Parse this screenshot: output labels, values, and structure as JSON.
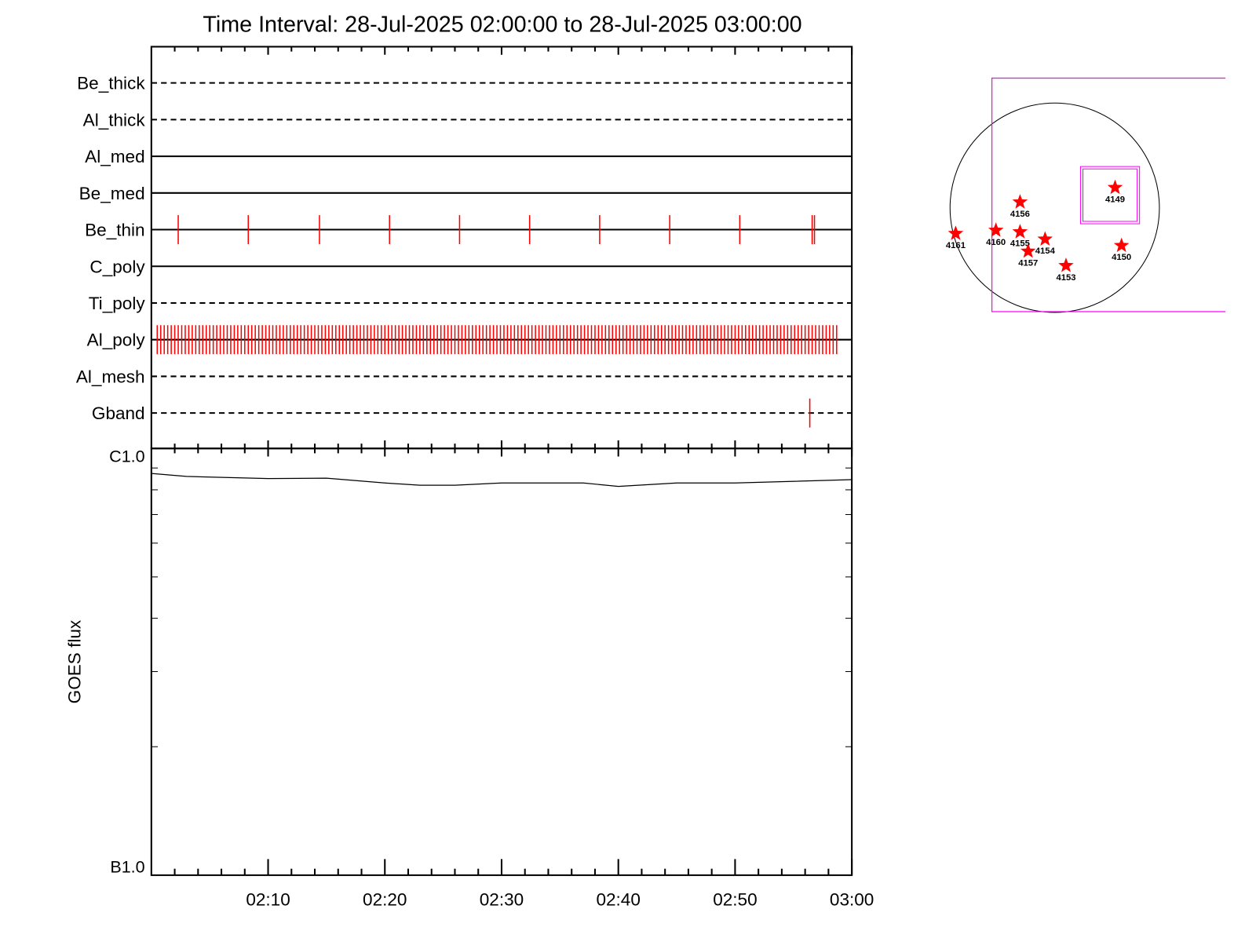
{
  "chart_data": {
    "type": "timeline",
    "title": "Time Interval: 28-Jul-2025 02:00:00 to 28-Jul-2025 03:00:00",
    "xlim": [
      0,
      60
    ],
    "xticks": [
      {
        "value": 10,
        "label": "02:10"
      },
      {
        "value": 20,
        "label": "02:20"
      },
      {
        "value": 30,
        "label": "02:30"
      },
      {
        "value": 40,
        "label": "02:40"
      },
      {
        "value": 50,
        "label": "02:50"
      },
      {
        "value": 60,
        "label": "03:00"
      }
    ],
    "minor_xticks": [
      2,
      4,
      6,
      8,
      12,
      14,
      16,
      18,
      22,
      24,
      26,
      28,
      32,
      34,
      36,
      38,
      42,
      44,
      46,
      48,
      52,
      54,
      56,
      58
    ],
    "event_color": "#ff0000",
    "filters": [
      {
        "name": "Be_thick",
        "style": "dashed",
        "events": []
      },
      {
        "name": "Al_thick",
        "style": "dashed",
        "events": []
      },
      {
        "name": "Al_med",
        "style": "solid",
        "events": []
      },
      {
        "name": "Be_med",
        "style": "solid",
        "events": []
      },
      {
        "name": "Be_thin",
        "style": "solid",
        "events": [
          2.3,
          8.3,
          14.4,
          20.4,
          26.4,
          32.4,
          38.4,
          44.4,
          50.4,
          56.6,
          56.8
        ]
      },
      {
        "name": "C_poly",
        "style": "solid",
        "events": []
      },
      {
        "name": "Ti_poly",
        "style": "dashed",
        "events": []
      },
      {
        "name": "Al_poly",
        "style": "solid",
        "events": [
          0.5,
          0.8,
          1.1,
          1.4,
          1.7,
          2.0,
          2.3,
          2.6,
          2.9,
          3.2,
          3.5,
          3.8,
          4.1,
          4.4,
          4.7,
          5.0,
          5.3,
          5.6,
          5.9,
          6.2,
          6.5,
          6.8,
          7.1,
          7.4,
          7.7,
          8.0,
          8.3,
          8.6,
          8.9,
          9.2,
          9.5,
          9.8,
          10.1,
          10.4,
          10.7,
          11.0,
          11.3,
          11.6,
          11.9,
          12.2,
          12.5,
          12.8,
          13.1,
          13.4,
          13.7,
          14.0,
          14.3,
          14.6,
          14.9,
          15.2,
          15.5,
          15.8,
          16.1,
          16.4,
          16.7,
          17.0,
          17.3,
          17.6,
          17.9,
          18.2,
          18.5,
          18.8,
          19.1,
          19.4,
          19.7,
          20.0,
          20.3,
          20.6,
          20.9,
          21.2,
          21.5,
          21.8,
          22.1,
          22.4,
          22.7,
          23.0,
          23.3,
          23.6,
          23.9,
          24.2,
          24.5,
          24.8,
          25.1,
          25.4,
          25.7,
          26.0,
          26.3,
          26.6,
          26.9,
          27.2,
          27.5,
          27.8,
          28.1,
          28.4,
          28.7,
          29.0,
          29.3,
          29.6,
          29.9,
          30.2,
          30.5,
          30.8,
          31.1,
          31.4,
          31.7,
          32.0,
          32.3,
          32.6,
          32.9,
          33.2,
          33.5,
          33.8,
          34.1,
          34.4,
          34.7,
          35.0,
          35.3,
          35.6,
          35.9,
          36.2,
          36.5,
          36.8,
          37.1,
          37.4,
          37.7,
          38.0,
          38.3,
          38.6,
          38.9,
          39.2,
          39.5,
          39.8,
          40.1,
          40.4,
          40.7,
          41.0,
          41.3,
          41.6,
          41.9,
          42.2,
          42.5,
          42.8,
          43.1,
          43.4,
          43.7,
          44.0,
          44.3,
          44.6,
          44.9,
          45.2,
          45.5,
          45.8,
          46.1,
          46.4,
          46.7,
          47.0,
          47.3,
          47.6,
          47.9,
          48.2,
          48.5,
          48.8,
          49.1,
          49.4,
          49.7,
          50.0,
          50.3,
          50.6,
          50.9,
          51.2,
          51.5,
          51.8,
          52.1,
          52.4,
          52.7,
          53.0,
          53.3,
          53.6,
          53.9,
          54.2,
          54.5,
          54.8,
          55.1,
          55.4,
          55.7,
          56.0,
          56.3,
          56.6,
          56.9,
          57.2,
          57.5,
          57.8,
          58.1,
          58.4,
          58.7
        ]
      },
      {
        "name": "Al_mesh",
        "style": "dashed",
        "events": []
      },
      {
        "name": "Gband",
        "style": "dashed",
        "events": [
          56.4
        ]
      }
    ],
    "goes": {
      "ylabel": "GOES flux",
      "log_scale": true,
      "ylim": [
        1e-07,
        1e-06
      ],
      "yticks": [
        {
          "value": 1e-07,
          "label": "B1.0"
        },
        {
          "value": 1e-06,
          "label": "C1.0"
        }
      ],
      "minor_yticks": [
        2e-07,
        3e-07,
        4e-07,
        5e-07,
        6e-07,
        7e-07,
        8e-07,
        9e-07
      ],
      "color": "#000000",
      "x": [
        0,
        3,
        10,
        15,
        20,
        23,
        26,
        30,
        37,
        40,
        45,
        50,
        60
      ],
      "values": [
        8.74e-07,
        8.6e-07,
        8.5e-07,
        8.52e-07,
        8.3e-07,
        8.2e-07,
        8.2e-07,
        8.3e-07,
        8.3e-07,
        8.15e-07,
        8.3e-07,
        8.3e-07,
        8.45e-07
      ]
    }
  },
  "sun_map": {
    "radius": 945,
    "fov_color": "#ff00ff",
    "star_color": "#ff0000",
    "fov": {
      "x": [
        -567,
        1541
      ],
      "y": [
        -938,
        1170
      ]
    },
    "target_box": {
      "x": [
        233,
        766
      ],
      "y": [
        -145,
        372
      ]
    },
    "regions": [
      {
        "label": "4149",
        "x": 545,
        "y": 182
      },
      {
        "label": "4156",
        "x": -313,
        "y": 51
      },
      {
        "label": "4161",
        "x": -894,
        "y": -233
      },
      {
        "label": "4160",
        "x": -531,
        "y": -204
      },
      {
        "label": "4155",
        "x": -313,
        "y": -218
      },
      {
        "label": "4154",
        "x": -87,
        "y": -284
      },
      {
        "label": "4157",
        "x": -240,
        "y": -393
      },
      {
        "label": "4153",
        "x": 102,
        "y": -523
      },
      {
        "label": "4150",
        "x": 603,
        "y": -342
      }
    ]
  }
}
